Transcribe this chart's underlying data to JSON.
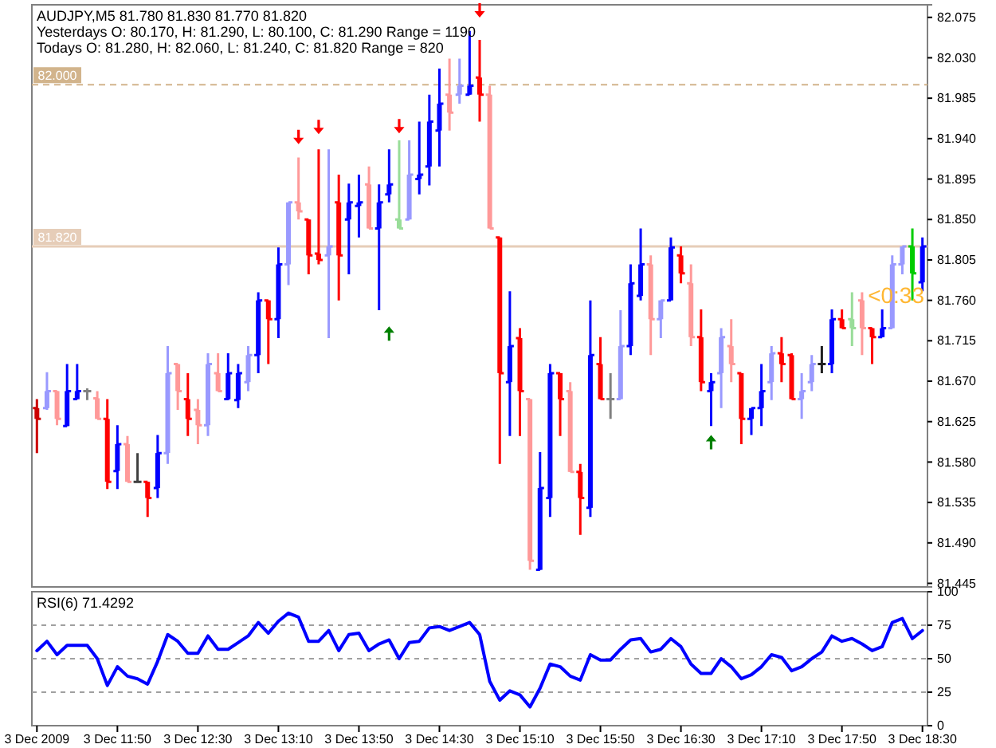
{
  "chart_data": [
    {
      "type": "candlestick",
      "title": "AUDJPY,M5  81.780 81.830 81.770 81.820",
      "annotations": [
        "Yesterdays O: 80.170, H: 81.290, L: 80.100, C: 81.290 Range = 1190",
        "Todays O: 81.280, H: 82.060, L: 81.240, C: 81.820 Range = 820",
        "<0:33"
      ],
      "ohlc": [
        [
          81.64,
          81.65,
          81.59,
          81.628
        ],
        [
          81.64,
          81.68,
          81.638,
          81.659
        ],
        [
          81.659,
          81.659,
          81.621,
          81.628
        ],
        [
          81.62,
          81.689,
          81.62,
          81.659
        ],
        [
          81.65,
          81.689,
          81.65,
          81.659
        ],
        [
          81.659,
          81.662,
          81.649,
          81.659
        ],
        [
          81.651,
          81.659,
          81.628,
          81.628
        ],
        [
          81.628,
          81.65,
          81.55,
          81.558
        ],
        [
          81.57,
          81.621,
          81.55,
          81.6
        ],
        [
          81.6,
          81.609,
          81.558,
          81.558
        ],
        [
          81.558,
          81.59,
          81.558,
          81.558
        ],
        [
          81.558,
          81.558,
          81.519,
          81.54
        ],
        [
          81.551,
          81.61,
          81.54,
          81.59
        ],
        [
          81.59,
          81.709,
          81.578,
          81.679
        ],
        [
          81.689,
          81.689,
          81.638,
          81.659
        ],
        [
          81.65,
          81.679,
          81.609,
          81.628
        ],
        [
          81.638,
          81.65,
          81.6,
          81.621
        ],
        [
          81.621,
          81.701,
          81.609,
          81.689
        ],
        [
          81.679,
          81.701,
          81.659,
          81.659
        ],
        [
          81.65,
          81.701,
          81.649,
          81.679
        ],
        [
          81.649,
          81.689,
          81.64,
          81.679
        ],
        [
          81.669,
          81.709,
          81.659,
          81.699
        ],
        [
          81.699,
          81.769,
          81.679,
          81.76
        ],
        [
          81.76,
          81.76,
          81.689,
          81.739
        ],
        [
          81.739,
          81.819,
          81.718,
          81.8
        ],
        [
          81.8,
          81.869,
          81.777,
          81.869
        ],
        [
          81.869,
          81.919,
          81.85,
          81.859
        ],
        [
          81.85,
          81.85,
          81.789,
          81.81
        ],
        [
          81.812,
          81.928,
          81.8,
          81.805
        ],
        [
          81.81,
          81.928,
          81.718,
          81.82
        ],
        [
          81.869,
          81.9,
          81.76,
          81.81
        ],
        [
          81.85,
          81.89,
          81.789,
          81.869
        ],
        [
          81.865,
          81.9,
          81.83,
          81.869
        ],
        [
          81.889,
          81.909,
          81.84,
          81.84
        ],
        [
          81.84,
          81.889,
          81.749,
          81.869
        ],
        [
          81.878,
          81.928,
          81.869,
          81.889
        ],
        [
          81.85,
          81.938,
          81.84,
          81.84
        ],
        [
          81.85,
          81.938,
          81.85,
          81.9
        ],
        [
          81.895,
          81.959,
          81.878,
          81.9
        ],
        [
          81.909,
          81.989,
          81.888,
          81.959
        ],
        [
          81.949,
          82.018,
          81.909,
          81.979
        ],
        [
          81.989,
          82.029,
          81.949,
          81.969
        ],
        [
          81.989,
          82.029,
          81.979,
          81.999
        ],
        [
          81.989,
          82.06,
          81.989,
          81.999
        ],
        [
          82.008,
          82.05,
          81.959,
          81.989
        ],
        [
          81.989,
          81.999,
          81.84,
          81.84
        ],
        [
          81.83,
          81.83,
          81.578,
          81.679
        ],
        [
          81.669,
          81.77,
          81.609,
          81.709
        ],
        [
          81.718,
          81.729,
          81.609,
          81.659
        ],
        [
          81.65,
          81.65,
          81.46,
          81.47
        ],
        [
          81.46,
          81.591,
          81.46,
          81.551
        ],
        [
          81.54,
          81.689,
          81.519,
          81.679
        ],
        [
          81.679,
          81.679,
          81.609,
          81.65
        ],
        [
          81.659,
          81.669,
          81.569,
          81.569
        ],
        [
          81.569,
          81.578,
          81.499,
          81.54
        ],
        [
          81.529,
          81.76,
          81.519,
          81.699
        ],
        [
          81.689,
          81.719,
          81.65,
          81.65
        ],
        [
          81.65,
          81.679,
          81.628,
          81.65
        ],
        [
          81.65,
          81.749,
          81.65,
          81.709
        ],
        [
          81.709,
          81.8,
          81.699,
          81.779
        ],
        [
          81.765,
          81.84,
          81.76,
          81.8
        ],
        [
          81.8,
          81.81,
          81.699,
          81.739
        ],
        [
          81.739,
          81.76,
          81.718,
          81.76
        ],
        [
          81.76,
          81.83,
          81.76,
          81.819
        ],
        [
          81.81,
          81.82,
          81.779,
          81.79
        ],
        [
          81.779,
          81.8,
          81.709,
          81.719
        ],
        [
          81.719,
          81.75,
          81.659,
          81.669
        ],
        [
          81.659,
          81.679,
          81.62,
          81.669
        ],
        [
          81.679,
          81.729,
          81.64,
          81.719
        ],
        [
          81.709,
          81.739,
          81.669,
          81.689
        ],
        [
          81.679,
          81.679,
          81.6,
          81.628
        ],
        [
          81.628,
          81.64,
          81.61,
          81.64
        ],
        [
          81.64,
          81.689,
          81.62,
          81.659
        ],
        [
          81.669,
          81.709,
          81.649,
          81.701
        ],
        [
          81.701,
          81.719,
          81.669,
          81.689
        ],
        [
          81.699,
          81.701,
          81.65,
          81.65
        ],
        [
          81.65,
          81.679,
          81.628,
          81.659
        ],
        [
          81.669,
          81.699,
          81.659,
          81.689
        ],
        [
          81.689,
          81.709,
          81.679,
          81.689
        ],
        [
          81.689,
          81.75,
          81.679,
          81.739
        ],
        [
          81.739,
          81.75,
          81.729,
          81.729
        ],
        [
          81.739,
          81.769,
          81.709,
          81.729
        ],
        [
          81.76,
          81.769,
          81.699,
          81.729
        ],
        [
          81.729,
          81.729,
          81.689,
          81.719
        ],
        [
          81.719,
          81.75,
          81.719,
          81.729
        ],
        [
          81.729,
          81.81,
          81.729,
          81.8
        ],
        [
          81.8,
          81.82,
          81.789,
          81.82
        ],
        [
          81.82,
          81.84,
          81.76,
          81.79
        ],
        [
          81.78,
          81.83,
          81.77,
          81.82
        ]
      ],
      "colors": [
        "#cc0000",
        "#9999ff",
        "#ff9999",
        "#0000ff",
        "#0000ff",
        "#808080",
        "#ff9999",
        "#ff0000",
        "#0000ff",
        "#ff9999",
        "#404040",
        "#ff0000",
        "#0000ff",
        "#9999ff",
        "#ff9999",
        "#ff0000",
        "#ff9999",
        "#9999ff",
        "#ff9999",
        "#0000ff",
        "#0000ff",
        "#9999ff",
        "#0000ff",
        "#ff0000",
        "#0000ff",
        "#9999ff",
        "#ff9999",
        "#ff0000",
        "#ff0000",
        "#9999ff",
        "#ff0000",
        "#0000ff",
        "#0000ff",
        "#ff9999",
        "#0000ff",
        "#0000ff",
        "#99dd99",
        "#9999ff",
        "#0000ff",
        "#0000ff",
        "#0000ff",
        "#ff9999",
        "#9999ff",
        "#0000ff",
        "#ff0000",
        "#ff9999",
        "#ff0000",
        "#0000ff",
        "#ff0000",
        "#ff9999",
        "#0000ff",
        "#0000ff",
        "#ff0000",
        "#ff9999",
        "#ff0000",
        "#0000ff",
        "#ff0000",
        "#808080",
        "#9999ff",
        "#0000ff",
        "#0000ff",
        "#ff9999",
        "#9999ff",
        "#0000ff",
        "#ff0000",
        "#ff9999",
        "#ff0000",
        "#0000ff",
        "#9999ff",
        "#ff9999",
        "#ff0000",
        "#0000ff",
        "#0000ff",
        "#9999ff",
        "#ff0000",
        "#ff0000",
        "#9999ff",
        "#9999ff",
        "#202020",
        "#0000ff",
        "#ff0000",
        "#99dd99",
        "#ff9999",
        "#ff0000",
        "#0000ff",
        "#9999ff",
        "#9999ff",
        "#00cc00",
        "#0000ff"
      ],
      "series": [
        {
          "type": "scatter",
          "color": "#ff0000",
          "values": [
            null,
            null,
            null,
            null,
            null,
            null,
            null,
            null,
            null,
            null,
            null,
            null,
            null,
            null,
            null,
            null,
            null,
            null,
            null,
            null,
            null,
            null,
            null,
            null,
            null,
            null,
            81.941,
            null,
            81.952,
            null,
            null,
            null,
            null,
            null,
            null,
            null,
            81.953,
            null,
            null,
            null,
            null,
            null,
            null,
            null,
            82.082,
            null,
            null,
            null,
            null,
            null,
            null,
            null,
            null,
            null,
            null,
            null,
            null,
            null,
            null,
            null,
            null,
            null,
            null,
            null,
            null,
            null,
            null,
            null,
            null,
            null,
            null,
            null,
            null,
            null,
            null,
            null,
            null,
            null,
            null,
            null,
            null,
            null,
            null,
            null,
            null,
            null,
            null,
            null,
            null
          ]
        },
        {
          "type": "scatter",
          "color": "#008000",
          "values": [
            null,
            null,
            null,
            null,
            null,
            null,
            null,
            null,
            null,
            null,
            null,
            null,
            null,
            null,
            null,
            null,
            null,
            null,
            null,
            null,
            null,
            null,
            null,
            null,
            null,
            null,
            null,
            null,
            null,
            null,
            null,
            null,
            null,
            null,
            null,
            81.724,
            null,
            null,
            null,
            null,
            null,
            null,
            null,
            null,
            null,
            null,
            null,
            null,
            null,
            null,
            null,
            null,
            null,
            null,
            null,
            null,
            null,
            null,
            null,
            null,
            null,
            null,
            null,
            null,
            null,
            null,
            null,
            81.603,
            null,
            null,
            null,
            null,
            null,
            null,
            null,
            null,
            null,
            null,
            null,
            null,
            null,
            null,
            null,
            null,
            null,
            null,
            null,
            null,
            null
          ]
        }
      ],
      "ylim": [
        81.441,
        82.089
      ],
      "yticks": [
        {
          "value": 82.075,
          "label": "82.075"
        },
        {
          "value": 82.03,
          "label": "82.030"
        },
        {
          "value": 81.985,
          "label": "81.985"
        },
        {
          "value": 81.94,
          "label": "81.940"
        },
        {
          "value": 81.895,
          "label": "81.895"
        },
        {
          "value": 81.85,
          "label": "81.850"
        },
        {
          "value": 81.805,
          "label": "81.805"
        },
        {
          "value": 81.76,
          "label": "81.760"
        },
        {
          "value": 81.715,
          "label": "81.715"
        },
        {
          "value": 81.67,
          "label": "81.670"
        },
        {
          "value": 81.625,
          "label": "81.625"
        },
        {
          "value": 81.58,
          "label": "81.580"
        },
        {
          "value": 81.535,
          "label": "81.535"
        },
        {
          "value": 81.49,
          "label": "81.490"
        },
        {
          "value": 81.445,
          "label": "81.445"
        }
      ],
      "ref_lines": [
        {
          "axis": "y",
          "value": 82.0,
          "label": "82.000",
          "color": "#d2b48c",
          "line_style": "dashed"
        },
        {
          "axis": "y",
          "value": 81.82,
          "label": "81.820",
          "color": "#e6cdb8",
          "line_style": "solid"
        }
      ],
      "tick_labels": "y"
    },
    {
      "type": "line",
      "title": "RSI(6) 71.4292",
      "categories": [
        "3 Dec 2009",
        null,
        null,
        null,
        null,
        null,
        null,
        null,
        "3 Dec 11:50",
        null,
        null,
        null,
        null,
        null,
        null,
        null,
        "3 Dec 12:30",
        null,
        null,
        null,
        null,
        null,
        null,
        null,
        "3 Dec 13:10",
        null,
        null,
        null,
        null,
        null,
        null,
        null,
        "3 Dec 13:50",
        null,
        null,
        null,
        null,
        null,
        null,
        null,
        "3 Dec 14:30",
        null,
        null,
        null,
        null,
        null,
        null,
        null,
        "3 Dec 15:10",
        null,
        null,
        null,
        null,
        null,
        null,
        null,
        "3 Dec 15:50",
        null,
        null,
        null,
        null,
        null,
        null,
        null,
        "3 Dec 16:30",
        null,
        null,
        null,
        null,
        null,
        null,
        null,
        "3 Dec 17:10",
        null,
        null,
        null,
        null,
        null,
        null,
        null,
        "3 Dec 17:50",
        null,
        null,
        null,
        null,
        null,
        null,
        null,
        "3 Dec 18:30"
      ],
      "series": [
        {
          "color": "#0000ff",
          "values": [
            56,
            63,
            53,
            60,
            60,
            60,
            50,
            30,
            44,
            37,
            35,
            31,
            48,
            68,
            63,
            54,
            54,
            67,
            57,
            57,
            62,
            67,
            77,
            69,
            78,
            84,
            81,
            63,
            63,
            71,
            56,
            68,
            69,
            56,
            61,
            64,
            50,
            62,
            63,
            73,
            74,
            71,
            74,
            77,
            68,
            33,
            19,
            26,
            23,
            14,
            28,
            46,
            44,
            37,
            34,
            53,
            49,
            49,
            57,
            64,
            65,
            55,
            57,
            65,
            59,
            46,
            39,
            39,
            50,
            44,
            35,
            38,
            44,
            53,
            51,
            41,
            44,
            50,
            55,
            67,
            63,
            65,
            61,
            56,
            59,
            77,
            80,
            65,
            71
          ]
        }
      ],
      "ylim": [
        0,
        100
      ],
      "yticks": [
        0,
        25,
        50,
        75,
        100
      ],
      "grid": "y"
    }
  ]
}
